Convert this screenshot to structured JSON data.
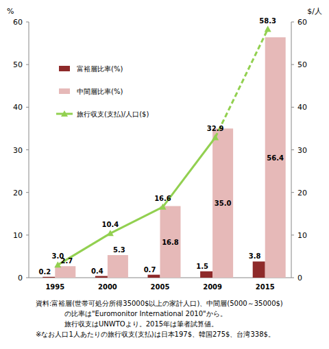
{
  "chart_data": {
    "type": "bar",
    "categories": [
      "1995",
      "2000",
      "2005",
      "2009",
      "2015"
    ],
    "y_label": "%",
    "y2_label": "$/人",
    "ylim": [
      0,
      60
    ],
    "yticks": [
      0,
      10,
      20,
      30,
      40,
      50,
      60
    ],
    "y2lim": [
      0,
      60
    ],
    "y2ticks": [
      0,
      10,
      20,
      30,
      40,
      50,
      60
    ],
    "grid": false,
    "legend": "upper-left",
    "data_labels": true,
    "series": [
      {
        "name": "富裕層比率(%)",
        "type": "bar",
        "color": "#8e2a2a",
        "values": [
          0.2,
          0.4,
          0.7,
          1.5,
          3.8
        ]
      },
      {
        "name": "中間層比率(%)",
        "type": "bar",
        "color": "#e6b9b8",
        "values": [
          2.7,
          5.3,
          16.8,
          35.0,
          56.4
        ],
        "value_labels": [
          "2.7",
          "5.3",
          "16.8",
          "35.0",
          "56.4"
        ]
      },
      {
        "name": "旅行収支(支払)/人口($)",
        "type": "line",
        "axis": "y2",
        "color": "#92d050",
        "marker": "triangle",
        "line_style": "solid-dashed-last",
        "values": [
          3.0,
          10.4,
          16.6,
          32.9,
          58.3
        ],
        "value_labels": [
          "3.0",
          "10.4",
          "16.6",
          "32.9",
          "58.3"
        ]
      }
    ],
    "notes": [
      "資料:富裕層(世帯可処分所得35000$以上の家計人口)、中間層(5000～35000$)",
      "の比率は\"Euromonitor International 2010\"から。",
      "旅行収支はUNWTOより。2015年は筆者試算値。",
      "※なお人口1人あたりの旅行収支(支払)は日本197$、韓国275$、台湾338$。"
    ]
  }
}
